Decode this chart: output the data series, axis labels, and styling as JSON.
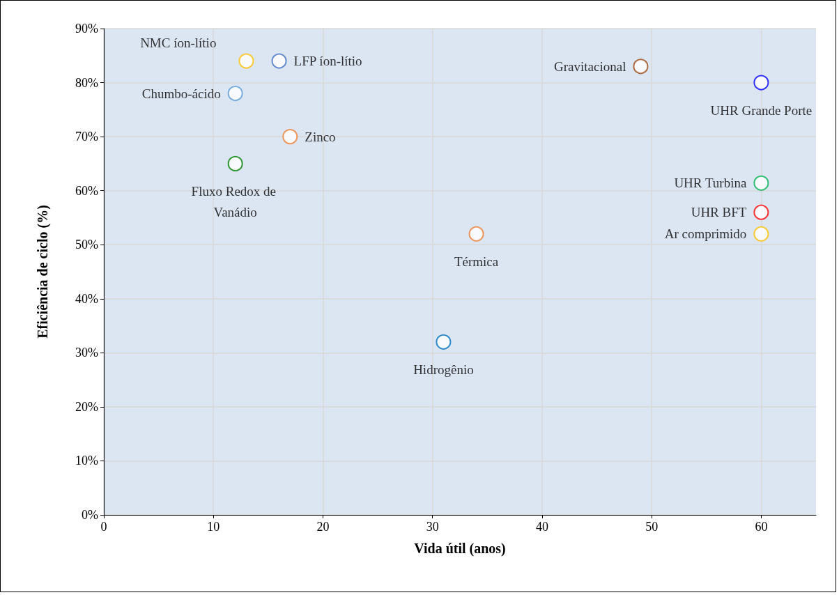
{
  "chart_data": {
    "type": "scatter",
    "xlabel": "Vida útil (anos)",
    "ylabel": "Eficiência de ciclo (%)",
    "xlim": [
      0,
      65
    ],
    "xticks": [
      0,
      10,
      20,
      30,
      40,
      50,
      60
    ],
    "ylim": [
      0,
      90
    ],
    "yticks": [
      {
        "value": 0,
        "label": "0%"
      },
      {
        "value": 10,
        "label": "10%"
      },
      {
        "value": 20,
        "label": "20%"
      },
      {
        "value": 30,
        "label": "30%"
      },
      {
        "value": 40,
        "label": "40%"
      },
      {
        "value": 50,
        "label": "50%"
      },
      {
        "value": 60,
        "label": "60%"
      },
      {
        "value": 70,
        "label": "70%"
      },
      {
        "value": 80,
        "label": "80%"
      },
      {
        "value": 90,
        "label": "90%"
      }
    ],
    "grid": true,
    "legend": false,
    "marker": "circle",
    "series": [
      {
        "name": "NMC íon-lítio",
        "color": "#ffc000",
        "x": [
          13
        ],
        "values": [
          84
        ]
      },
      {
        "name": "LFP íon-lítio",
        "color": "#4472c4",
        "x": [
          16
        ],
        "values": [
          84
        ]
      },
      {
        "name": "Chumbo-ácido",
        "color": "#5b9bd5",
        "x": [
          12
        ],
        "values": [
          78
        ]
      },
      {
        "name": "Zinco",
        "color": "#ed7d31",
        "x": [
          17
        ],
        "values": [
          70
        ]
      },
      {
        "name": "Fluxo Redox de Vanádio",
        "color": "#008000",
        "x": [
          12
        ],
        "values": [
          65
        ]
      },
      {
        "name": "Térmica",
        "color": "#ed7d31",
        "x": [
          34
        ],
        "values": [
          52
        ]
      },
      {
        "name": "Hidrogênio",
        "color": "#0070c0",
        "x": [
          31
        ],
        "values": [
          32
        ]
      },
      {
        "name": "Gravitacional",
        "color": "#9e480e",
        "x": [
          49
        ],
        "values": [
          83
        ]
      },
      {
        "name": "UHR Grande Porte",
        "color": "#0000ff",
        "x": [
          60
        ],
        "values": [
          80
        ]
      },
      {
        "name": "UHR Turbina",
        "color": "#00b050",
        "x": [
          60
        ],
        "values": [
          61.4
        ]
      },
      {
        "name": "UHR BFT",
        "color": "#ff0000",
        "x": [
          60
        ],
        "values": [
          56
        ]
      },
      {
        "name": "Ar comprimido",
        "color": "#ffc000",
        "x": [
          60
        ],
        "values": [
          52
        ]
      }
    ]
  }
}
